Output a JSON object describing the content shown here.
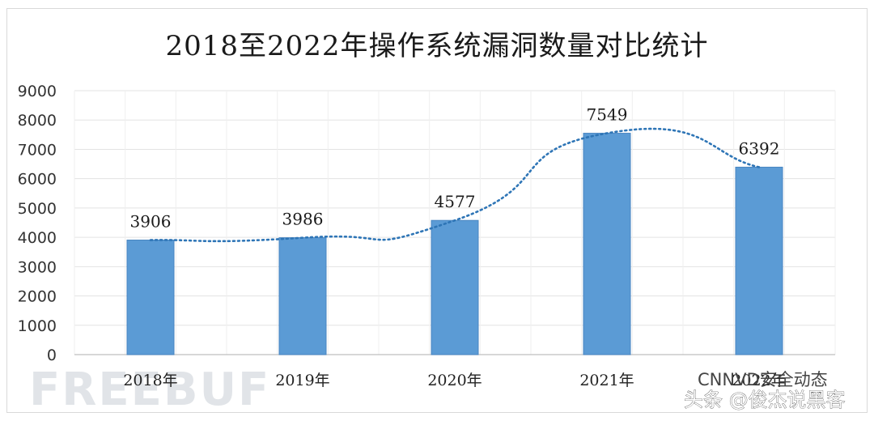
{
  "chart_data": {
    "type": "bar",
    "title": "2018至2022年操作系统漏洞数量对比统计",
    "categories": [
      "2018年",
      "2019年",
      "2020年",
      "2021年",
      "2022年"
    ],
    "values": [
      3906,
      3986,
      4577,
      7549,
      6392
    ],
    "ylim": [
      0,
      9000
    ],
    "yticks": [
      0,
      1000,
      2000,
      3000,
      4000,
      5000,
      6000,
      7000,
      8000,
      9000
    ],
    "xlabel": "",
    "ylabel": "",
    "grid": true,
    "trendline": "smooth dotted",
    "legend": "none"
  },
  "watermark": "FREEBUF",
  "source_label": "CNNVD安全动态",
  "credit": "头条 @俊杰说黑客",
  "colors": {
    "bar": "#5b9bd5",
    "bar_edge": "#4a86c2",
    "trend": "#2e75b6",
    "grid": "#e3e3e3"
  }
}
